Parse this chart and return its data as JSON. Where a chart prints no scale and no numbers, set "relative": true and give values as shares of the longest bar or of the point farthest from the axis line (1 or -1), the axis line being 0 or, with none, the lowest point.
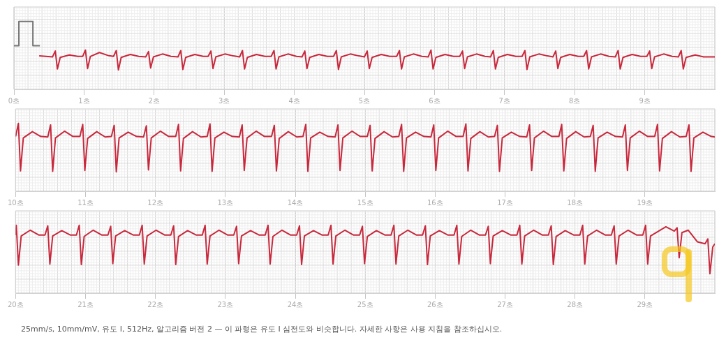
{
  "chart_data": [
    {
      "type": "line",
      "relative": true,
      "grid": true,
      "xlim": [
        0,
        10
      ],
      "xticks": [
        {
          "value": 0,
          "label": "0초"
        },
        {
          "value": 1,
          "label": "1초"
        },
        {
          "value": 2,
          "label": "2초"
        },
        {
          "value": 3,
          "label": "3초"
        },
        {
          "value": 4,
          "label": "4초"
        },
        {
          "value": 5,
          "label": "5초"
        },
        {
          "value": 6,
          "label": "6초"
        },
        {
          "value": 7,
          "label": "7초"
        },
        {
          "value": 8,
          "label": "8초"
        },
        {
          "value": 9,
          "label": "9초"
        }
      ],
      "series": [
        {
          "color": "#777777",
          "x": [
            0,
            0.07,
            0.07,
            0.27,
            0.27,
            0.37
          ],
          "values": [
            0.5,
            0.5,
            1,
            1,
            0.5,
            0.5
          ]
        },
        {
          "color": "#c8283c",
          "x": [
            0.36,
            0.55,
            0.59,
            0.62,
            0.66,
            0.79,
            0.91,
            0.98,
            1.02,
            1.05,
            1.09,
            1.22,
            1.34,
            1.42,
            1.46,
            1.49,
            1.53,
            1.66,
            1.78,
            1.88,
            1.92,
            1.95,
            1.99,
            2.12,
            2.24,
            2.34,
            2.38,
            2.41,
            2.45,
            2.58,
            2.7,
            2.77,
            2.81,
            2.84,
            2.88,
            3.01,
            3.13,
            3.22,
            3.26,
            3.29,
            3.33,
            3.46,
            3.58,
            3.67,
            3.71,
            3.74,
            3.78,
            3.91,
            4.03,
            4.11,
            4.15,
            4.18,
            4.22,
            4.35,
            4.47,
            4.56,
            4.6,
            4.63,
            4.67,
            4.8,
            4.92,
            5.0,
            5.04,
            5.07,
            5.11,
            5.24,
            5.36,
            5.46,
            5.5,
            5.53,
            5.57,
            5.7,
            5.82,
            5.91,
            5.95,
            5.98,
            6.02,
            6.15,
            6.27,
            6.36,
            6.4,
            6.43,
            6.47,
            6.6,
            6.72,
            6.8,
            6.84,
            6.87,
            6.91,
            7.04,
            7.16,
            7.25,
            7.29,
            7.32,
            7.36,
            7.49,
            7.61,
            7.69,
            7.73,
            7.76,
            7.8,
            7.93,
            8.05,
            8.13,
            8.17,
            8.2,
            8.24,
            8.37,
            8.49,
            8.58,
            8.62,
            8.65,
            8.69,
            8.82,
            8.94,
            9.03,
            9.07,
            9.1,
            9.14,
            9.27,
            9.39,
            9.48,
            9.52,
            9.55,
            9.59,
            9.72,
            9.84,
            10.0
          ],
          "values": [
            0.29,
            0.27,
            0.39,
            0.02,
            0.26,
            0.31,
            0.28,
            0.28,
            0.41,
            0.03,
            0.28,
            0.36,
            0.3,
            0.28,
            0.4,
            0.0,
            0.26,
            0.32,
            0.28,
            0.27,
            0.38,
            0.04,
            0.27,
            0.33,
            0.28,
            0.27,
            0.4,
            0.01,
            0.26,
            0.32,
            0.28,
            0.28,
            0.39,
            0.03,
            0.27,
            0.33,
            0.29,
            0.27,
            0.4,
            0.02,
            0.26,
            0.32,
            0.28,
            0.28,
            0.4,
            0.02,
            0.27,
            0.33,
            0.28,
            0.27,
            0.39,
            0.03,
            0.26,
            0.32,
            0.28,
            0.28,
            0.4,
            0.01,
            0.27,
            0.33,
            0.29,
            0.27,
            0.39,
            0.03,
            0.26,
            0.32,
            0.28,
            0.28,
            0.4,
            0.02,
            0.27,
            0.33,
            0.28,
            0.27,
            0.41,
            0.02,
            0.26,
            0.32,
            0.28,
            0.28,
            0.39,
            0.03,
            0.27,
            0.33,
            0.28,
            0.27,
            0.4,
            0.02,
            0.26,
            0.32,
            0.28,
            0.28,
            0.4,
            0.01,
            0.27,
            0.33,
            0.29,
            0.27,
            0.39,
            0.03,
            0.26,
            0.32,
            0.28,
            0.28,
            0.4,
            0.02,
            0.27,
            0.33,
            0.28,
            0.27,
            0.4,
            0.02,
            0.26,
            0.32,
            0.28,
            0.28,
            0.39,
            0.03,
            0.27,
            0.33,
            0.28,
            0.27,
            0.4,
            0.02,
            0.26,
            0.31,
            0.27,
            0.27
          ]
        }
      ]
    },
    {
      "type": "line",
      "relative": true,
      "grid": true,
      "xlim": [
        10,
        20
      ],
      "xticks": [
        {
          "value": 10,
          "label": "10초"
        },
        {
          "value": 11,
          "label": "11초"
        },
        {
          "value": 12,
          "label": "12초"
        },
        {
          "value": 13,
          "label": "13초"
        },
        {
          "value": 14,
          "label": "14초"
        },
        {
          "value": 15,
          "label": "15초"
        },
        {
          "value": 16,
          "label": "16초"
        },
        {
          "value": 17,
          "label": "17초"
        },
        {
          "value": 18,
          "label": "18초"
        },
        {
          "value": 19,
          "label": "19초"
        }
      ],
      "series": [
        {
          "color": "#c8283c",
          "x": [
            10.0,
            10.04,
            10.07,
            10.11,
            10.24,
            10.36,
            10.46,
            10.5,
            10.53,
            10.57,
            10.7,
            10.82,
            10.92,
            10.96,
            10.99,
            11.03,
            11.16,
            11.28,
            11.37,
            11.41,
            11.44,
            11.48,
            11.61,
            11.73,
            11.83,
            11.87,
            11.9,
            11.94,
            12.07,
            12.19,
            12.29,
            12.33,
            12.36,
            12.4,
            12.53,
            12.65,
            12.74,
            12.78,
            12.81,
            12.85,
            12.98,
            13.1,
            13.2,
            13.24,
            13.27,
            13.31,
            13.44,
            13.56,
            13.66,
            13.7,
            13.73,
            13.77,
            13.9,
            14.02,
            14.11,
            14.15,
            14.18,
            14.22,
            14.35,
            14.47,
            14.57,
            14.61,
            14.64,
            14.68,
            14.81,
            14.93,
            15.03,
            15.07,
            15.1,
            15.14,
            15.27,
            15.39,
            15.48,
            15.52,
            15.55,
            15.59,
            15.72,
            15.84,
            15.94,
            15.98,
            16.01,
            16.05,
            16.18,
            16.3,
            16.4,
            16.44,
            16.47,
            16.51,
            16.64,
            16.76,
            16.85,
            16.89,
            16.92,
            16.96,
            17.09,
            17.21,
            17.31,
            17.35,
            17.38,
            17.42,
            17.55,
            17.67,
            17.77,
            17.81,
            17.84,
            17.88,
            18.01,
            18.13,
            18.22,
            18.26,
            18.29,
            18.33,
            18.46,
            18.58,
            18.68,
            18.72,
            18.75,
            18.79,
            18.92,
            19.04,
            19.14,
            19.18,
            19.21,
            19.25,
            19.38,
            19.5,
            19.59,
            19.63,
            19.66,
            19.7,
            19.83,
            19.95,
            20.0
          ],
          "values": [
            0.73,
            1.0,
            0.02,
            0.7,
            0.83,
            0.73,
            0.72,
            0.97,
            0.01,
            0.7,
            0.84,
            0.73,
            0.73,
            0.98,
            0.03,
            0.69,
            0.83,
            0.72,
            0.73,
            0.96,
            0.0,
            0.7,
            0.82,
            0.73,
            0.72,
            0.95,
            0.04,
            0.7,
            0.84,
            0.73,
            0.73,
            0.98,
            0.02,
            0.69,
            0.83,
            0.72,
            0.73,
            0.99,
            0.01,
            0.7,
            0.82,
            0.73,
            0.72,
            0.97,
            0.03,
            0.7,
            0.84,
            0.73,
            0.73,
            0.96,
            0.02,
            0.69,
            0.83,
            0.72,
            0.73,
            0.98,
            0.01,
            0.7,
            0.82,
            0.73,
            0.72,
            0.97,
            0.03,
            0.7,
            0.84,
            0.73,
            0.73,
            0.96,
            0.02,
            0.69,
            0.83,
            0.72,
            0.73,
            0.98,
            0.01,
            0.7,
            0.82,
            0.73,
            0.72,
            0.97,
            0.03,
            0.7,
            0.84,
            0.73,
            0.73,
            0.99,
            0.02,
            0.69,
            0.83,
            0.72,
            0.73,
            0.96,
            0.01,
            0.7,
            0.82,
            0.73,
            0.72,
            0.97,
            0.03,
            0.7,
            0.84,
            0.73,
            0.73,
            0.98,
            0.02,
            0.69,
            0.83,
            0.72,
            0.73,
            0.96,
            0.01,
            0.7,
            0.82,
            0.73,
            0.72,
            0.97,
            0.03,
            0.7,
            0.84,
            0.73,
            0.73,
            0.98,
            0.02,
            0.69,
            0.83,
            0.72,
            0.73,
            0.97,
            0.01,
            0.7,
            0.82,
            0.73,
            0.72
          ]
        }
      ]
    },
    {
      "type": "line",
      "relative": true,
      "grid": true,
      "xlim": [
        20,
        30
      ],
      "xticks": [
        {
          "value": 20,
          "label": "20초"
        },
        {
          "value": 21,
          "label": "21초"
        },
        {
          "value": 22,
          "label": "22초"
        },
        {
          "value": 23,
          "label": "23초"
        },
        {
          "value": 24,
          "label": "24초"
        },
        {
          "value": 25,
          "label": "25초"
        },
        {
          "value": 26,
          "label": "26초"
        },
        {
          "value": 27,
          "label": "27초"
        },
        {
          "value": 28,
          "label": "28초"
        },
        {
          "value": 29,
          "label": "29초"
        }
      ],
      "annotations": [
        "25mm/s, 10mm/mV, 유도 I, 512Hz, 알고리즘 버전 2 — 이 파형은 유도 I 심전도와 비슷합니다. 자세한 사항은 사용 지침을 참조하십시오."
      ],
      "series": [
        {
          "color": "#c8283c",
          "x": [
            20.0,
            20.01,
            20.04,
            20.08,
            20.21,
            20.33,
            20.42,
            20.46,
            20.49,
            20.53,
            20.66,
            20.78,
            20.87,
            20.91,
            20.94,
            20.98,
            21.11,
            21.23,
            21.32,
            21.36,
            21.39,
            21.43,
            21.56,
            21.68,
            21.77,
            21.81,
            21.84,
            21.88,
            22.01,
            22.13,
            22.22,
            22.26,
            22.29,
            22.33,
            22.46,
            22.58,
            22.67,
            22.71,
            22.74,
            22.78,
            22.91,
            23.03,
            23.12,
            23.16,
            23.19,
            23.23,
            23.36,
            23.48,
            23.57,
            23.61,
            23.64,
            23.68,
            23.81,
            23.93,
            24.02,
            24.06,
            24.09,
            24.13,
            24.26,
            24.38,
            24.47,
            24.51,
            24.54,
            24.58,
            24.71,
            24.83,
            24.92,
            24.96,
            24.99,
            25.03,
            25.16,
            25.28,
            25.37,
            25.41,
            25.44,
            25.48,
            25.61,
            25.73,
            25.82,
            25.86,
            25.89,
            25.93,
            26.06,
            26.18,
            26.27,
            26.31,
            26.34,
            26.38,
            26.51,
            26.63,
            26.72,
            26.76,
            26.79,
            26.83,
            26.96,
            27.08,
            27.17,
            27.21,
            27.24,
            27.28,
            27.41,
            27.53,
            27.62,
            27.66,
            27.69,
            27.73,
            27.86,
            27.98,
            28.07,
            28.11,
            28.14,
            28.18,
            28.31,
            28.43,
            28.52,
            28.56,
            28.59,
            28.63,
            28.76,
            28.88,
            28.97,
            29.01,
            29.04,
            29.08,
            29.3,
            29.42,
            29.46,
            29.49,
            29.53,
            29.62,
            29.75,
            29.86,
            29.9,
            29.93,
            29.97,
            30.0
          ],
          "values": [
            0.8,
            1.0,
            0.18,
            0.78,
            0.9,
            0.8,
            0.8,
            0.99,
            0.2,
            0.78,
            0.89,
            0.8,
            0.8,
            1.0,
            0.19,
            0.77,
            0.9,
            0.8,
            0.8,
            0.98,
            0.21,
            0.78,
            0.89,
            0.8,
            0.8,
            1.0,
            0.2,
            0.78,
            0.9,
            0.8,
            0.8,
            0.99,
            0.19,
            0.77,
            0.89,
            0.8,
            0.8,
            1.0,
            0.2,
            0.78,
            0.9,
            0.8,
            0.8,
            0.98,
            0.21,
            0.78,
            0.89,
            0.8,
            0.8,
            1.0,
            0.2,
            0.77,
            0.9,
            0.8,
            0.8,
            0.99,
            0.19,
            0.78,
            0.89,
            0.8,
            0.8,
            1.0,
            0.2,
            0.78,
            0.9,
            0.8,
            0.8,
            0.98,
            0.21,
            0.77,
            0.89,
            0.8,
            0.8,
            1.0,
            0.2,
            0.78,
            0.9,
            0.8,
            0.8,
            0.99,
            0.19,
            0.78,
            0.89,
            0.8,
            0.8,
            1.0,
            0.2,
            0.77,
            0.9,
            0.8,
            0.8,
            0.98,
            0.21,
            0.78,
            0.89,
            0.8,
            0.8,
            1.0,
            0.2,
            0.78,
            0.9,
            0.8,
            0.8,
            0.99,
            0.19,
            0.77,
            0.89,
            0.8,
            0.8,
            1.0,
            0.2,
            0.78,
            0.9,
            0.8,
            0.8,
            0.99,
            0.2,
            0.78,
            0.9,
            0.8,
            0.8,
            1.0,
            0.2,
            0.78,
            0.97,
            0.88,
            0.95,
            0.33,
            0.85,
            0.9,
            0.66,
            0.62,
            0.72,
            0.0,
            0.55,
            0.62
          ]
        }
      ]
    }
  ]
}
